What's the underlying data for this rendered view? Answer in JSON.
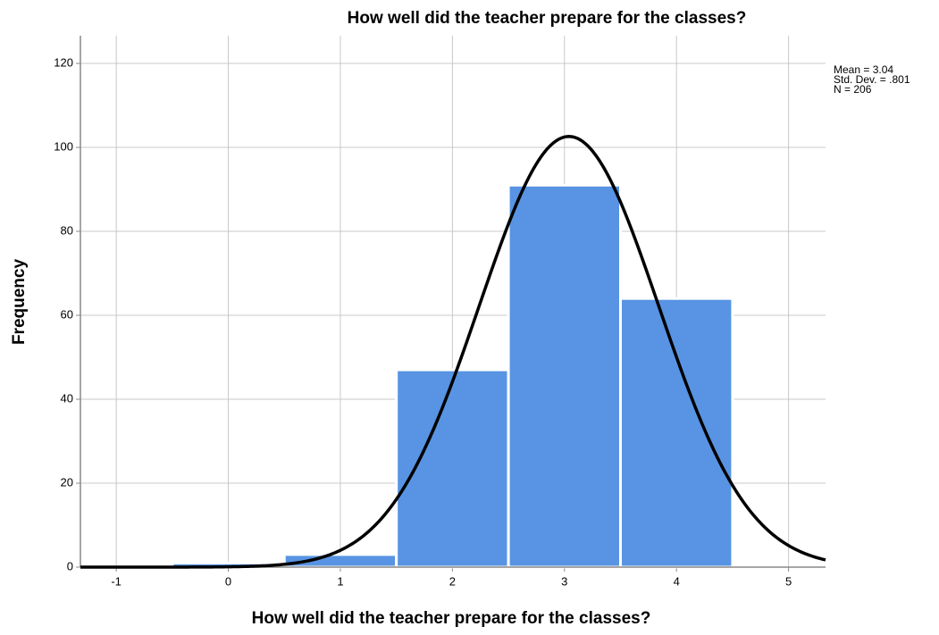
{
  "chart_data": {
    "type": "histogram",
    "title": "How well did the teacher prepare for the classes?",
    "x_label": "How well did the teacher prepare for the classes?",
    "y_label": "Frequency",
    "bins": [
      -0.5,
      0.5,
      1.5,
      2.5,
      3.5,
      4.5
    ],
    "values": [
      1,
      3,
      47,
      91,
      64
    ],
    "color": "#5894e3",
    "xlim": [
      -1.32,
      5.33
    ],
    "ylim": [
      0,
      126.6
    ],
    "xticks": [
      -1,
      0,
      1,
      2,
      3,
      4,
      5
    ],
    "yticks": [
      0,
      20,
      40,
      60,
      80,
      100,
      120
    ],
    "grid": true,
    "normal_curve": {
      "mean": 3.04,
      "sd": 0.801,
      "n": 206
    },
    "annotations": [
      "Mean = 3.04",
      "Std. Dev. = .801",
      "N = 206"
    ]
  }
}
